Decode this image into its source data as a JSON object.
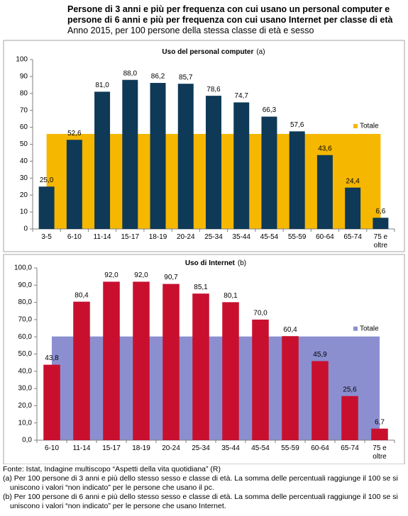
{
  "title_lines": [
    "Persone di 3 anni e più per frequenza con cui usano un personal computer e",
    "persone di 6 anni e più per frequenza con cui usano Internet per classe di età"
  ],
  "subtitle": "Anno 2015, per 100 persone della stessa classe di età e sesso",
  "chart_data": [
    {
      "type": "bar",
      "title": "Uso del personal computer",
      "title_note": "(a)",
      "categories": [
        "3-5",
        "6-10",
        "11-14",
        "15-17",
        "18-19",
        "20-24",
        "25-34",
        "35-44",
        "45-54",
        "55-59",
        "60-64",
        "65-74",
        "75 e oltre"
      ],
      "values": [
        25.0,
        52.6,
        81.0,
        88.0,
        86.2,
        85.7,
        78.6,
        74.7,
        66.3,
        57.6,
        43.6,
        24.4,
        6.6
      ],
      "value_labels": [
        "25,0",
        "52,6",
        "81,0",
        "88,0",
        "86,2",
        "85,7",
        "78,6",
        "74,7",
        "66,3",
        "57,6",
        "43,6",
        "24,4",
        "6,6"
      ],
      "color": "#0e3957",
      "total": {
        "name": "Totale",
        "value": 56.1,
        "color": "#f5b700"
      },
      "ylim": [
        0,
        100
      ],
      "yticks": [
        0,
        10,
        20,
        30,
        40,
        50,
        60,
        70,
        80,
        90,
        100
      ],
      "grid": false
    },
    {
      "type": "bar",
      "title": "Uso di Internet",
      "title_note": "(b)",
      "categories": [
        "6-10",
        "11-14",
        "15-17",
        "18-19",
        "20-24",
        "25-34",
        "35-44",
        "45-54",
        "55-59",
        "60-64",
        "65-74",
        "75 e oltre"
      ],
      "values": [
        43.8,
        80.4,
        92.0,
        92.0,
        90.7,
        85.1,
        80.1,
        70.0,
        60.4,
        45.9,
        25.6,
        6.7
      ],
      "value_labels": [
        "43,8",
        "80,4",
        "92,0",
        "92,0",
        "90,7",
        "85,1",
        "80,1",
        "70,0",
        "60,4",
        "45,9",
        "25,6",
        "6,7"
      ],
      "color": "#c8102e",
      "total": {
        "name": "Totale",
        "value": 60.2,
        "color": "#8b8fd0"
      },
      "ylim": [
        0,
        100
      ],
      "yticks": [
        {
          "value": 0,
          "label": "0,0"
        },
        {
          "value": 10,
          "label": "10,0"
        },
        {
          "value": 20,
          "label": "20,0"
        },
        {
          "value": 30,
          "label": "30,0"
        },
        {
          "value": 40,
          "label": "40,0"
        },
        {
          "value": 50,
          "label": "50,0"
        },
        {
          "value": 60,
          "label": "60,0"
        },
        {
          "value": 70,
          "label": "70,0"
        },
        {
          "value": 80,
          "label": "80,0"
        },
        {
          "value": 90,
          "label": "90,0"
        },
        {
          "value": 100,
          "label": "100,0"
        }
      ],
      "grid": false
    }
  ],
  "notes": [
    "Fonte: Istat, Indagine multiscopo “Aspetti della vita quotidiana” (R)",
    "(a) Per 100 persone di 3 anni e più dello stesso sesso e classe di età. La somma delle percentuali raggiunge il 100 se si uniscono i valori “non indicato” per le persone che usano il pc.",
    "(b) Per 100 persone di 6 anni e più dello stesso sesso e classe di età. La somma delle percentuali raggiunge il 100 se si uniscono i valori “non indicato” per le persone che usano Internet."
  ]
}
